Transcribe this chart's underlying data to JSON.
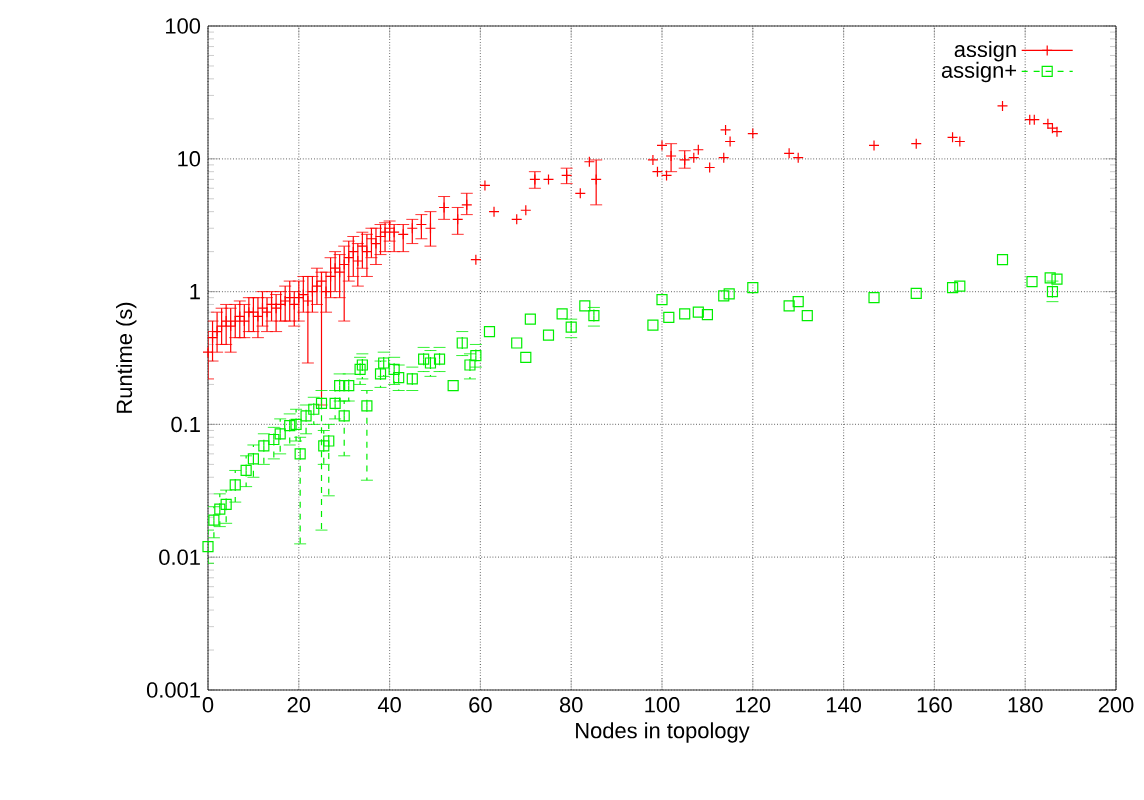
{
  "chart_data": {
    "type": "scatter",
    "xlabel": "Nodes in topology",
    "ylabel": "Runtime (s)",
    "log": "y",
    "grid": true,
    "legend": "top right",
    "xlim": [
      0,
      200
    ],
    "xticks": [
      0,
      20,
      40,
      60,
      80,
      100,
      120,
      140,
      160,
      180,
      200
    ],
    "ylim": [
      0.001,
      100
    ],
    "yticks": [
      0.001,
      0.01,
      0.1,
      1,
      10,
      100
    ],
    "series": [
      {
        "name": "assign",
        "color": "#ff0000",
        "marker": "cross",
        "line_style": "solid",
        "x": [
          0,
          1,
          2,
          3,
          4,
          5,
          6,
          7,
          8,
          9,
          10,
          11,
          12,
          13,
          14,
          15,
          16,
          17,
          18,
          19,
          20,
          21,
          22,
          23,
          24,
          25,
          26,
          27,
          28,
          29,
          30,
          31,
          32,
          33,
          34,
          35,
          36,
          37,
          38,
          39,
          40,
          41,
          43,
          45,
          47,
          49,
          52,
          55,
          57,
          59,
          61,
          63,
          68,
          70,
          72,
          75,
          79,
          82,
          84,
          85.5,
          98,
          99,
          100,
          101,
          102,
          105,
          107,
          108,
          110.5,
          113.6,
          114,
          115,
          120,
          128,
          130,
          146.7,
          156,
          164,
          165.6,
          175,
          181,
          182,
          185,
          186,
          187
        ],
        "values": [
          0.35,
          0.45,
          0.5,
          0.55,
          0.6,
          0.55,
          0.6,
          0.65,
          0.6,
          0.7,
          0.7,
          0.65,
          0.75,
          0.7,
          0.8,
          0.75,
          0.8,
          0.85,
          0.9,
          0.8,
          0.9,
          0.95,
          0.85,
          1.0,
          1.1,
          1.2,
          1.0,
          1.3,
          1.5,
          1.4,
          1.6,
          1.8,
          2.0,
          1.7,
          2.2,
          2.0,
          2.5,
          2.3,
          2.6,
          2.8,
          3.0,
          2.8,
          2.7,
          3.0,
          3.2,
          3.0,
          4.3,
          3.5,
          4.5,
          1.74,
          6.3,
          4.0,
          3.5,
          4.1,
          7.0,
          7.0,
          7.5,
          5.5,
          9.5,
          7.0,
          9.8,
          8.0,
          12.6,
          7.5,
          10.5,
          9.8,
          10.2,
          11.7,
          8.6,
          10.2,
          16.5,
          13.5,
          15.5,
          11.0,
          10.2,
          12.6,
          13.0,
          14.5,
          13.5,
          25.0,
          19.7,
          19.7,
          18.4,
          17.0,
          16.0
        ],
        "errors": [
          [
            0.22,
            0.5
          ],
          [
            0.3,
            0.6
          ],
          [
            0.35,
            0.7
          ],
          [
            0.4,
            0.75
          ],
          [
            0.4,
            0.8
          ],
          [
            0.35,
            0.75
          ],
          [
            0.45,
            0.8
          ],
          [
            0.45,
            0.85
          ],
          [
            0.45,
            0.8
          ],
          [
            0.5,
            0.9
          ],
          [
            0.5,
            0.9
          ],
          [
            0.45,
            0.9
          ],
          [
            0.55,
            1.0
          ],
          [
            0.5,
            0.9
          ],
          [
            0.6,
            1.0
          ],
          [
            0.5,
            0.95
          ],
          [
            0.6,
            1.0
          ],
          [
            0.6,
            1.1
          ],
          [
            0.6,
            1.2
          ],
          [
            0.55,
            1.0
          ],
          [
            0.6,
            1.2
          ],
          [
            0.7,
            1.3
          ],
          [
            0.29,
            1.3
          ],
          [
            0.7,
            1.3
          ],
          [
            0.8,
            1.5
          ],
          [
            0.14,
            1.4
          ],
          [
            0.7,
            1.4
          ],
          [
            0.9,
            1.8
          ],
          [
            1.0,
            2.0
          ],
          [
            0.9,
            1.9
          ],
          [
            0.6,
            2.2
          ],
          [
            1.2,
            2.4
          ],
          [
            1.3,
            2.6
          ],
          [
            1.1,
            2.3
          ],
          [
            1.5,
            2.8
          ],
          [
            1.3,
            2.7
          ],
          [
            1.8,
            3.0
          ],
          [
            1.6,
            3.0
          ],
          [
            1.9,
            3.2
          ],
          [
            2.0,
            3.3
          ],
          [
            2.4,
            3.4
          ],
          [
            2.0,
            3.2
          ],
          [
            2.0,
            3.2
          ],
          [
            2.3,
            3.5
          ],
          [
            2.5,
            3.8
          ],
          [
            2.2,
            4.0
          ],
          [
            3.5,
            5.2
          ],
          [
            2.7,
            4.3
          ],
          [
            3.8,
            5.5
          ],
          null,
          null,
          null,
          null,
          null,
          [
            6.0,
            8.0
          ],
          null,
          [
            6.5,
            8.5
          ],
          null,
          null,
          [
            4.5,
            9.8
          ],
          null,
          null,
          null,
          null,
          [
            8.0,
            13.0
          ],
          [
            8.5,
            11.5
          ],
          null,
          null,
          null,
          null,
          null,
          null,
          null,
          null,
          null,
          null,
          null,
          null,
          null,
          null,
          null,
          null,
          null,
          null,
          null
        ]
      },
      {
        "name": "assign+",
        "color": "#00ee00",
        "marker": "square",
        "line_style": "dashed",
        "x": [
          0,
          1.3,
          2.6,
          4,
          6,
          8.4,
          10,
          12.3,
          14.5,
          15.9,
          18,
          19.4,
          20.3,
          21.6,
          23.3,
          25,
          25.5,
          26.6,
          28,
          29,
          30,
          31,
          33.5,
          34,
          35,
          38,
          38.7,
          41,
          42,
          45,
          47.5,
          49,
          51,
          54,
          56,
          57.7,
          59,
          62,
          68,
          70,
          71,
          75,
          78,
          80,
          83,
          85,
          98,
          100,
          101.5,
          105,
          108,
          110,
          113.6,
          114.8,
          120,
          128,
          130,
          132,
          146.7,
          156,
          164,
          165.6,
          175,
          181.5,
          185.5,
          186,
          187
        ],
        "values": [
          0.012,
          0.019,
          0.023,
          0.025,
          0.035,
          0.045,
          0.055,
          0.069,
          0.077,
          0.085,
          0.098,
          0.1,
          0.06,
          0.116,
          0.13,
          0.144,
          0.069,
          0.075,
          0.144,
          0.196,
          0.116,
          0.196,
          0.26,
          0.28,
          0.138,
          0.24,
          0.29,
          0.26,
          0.225,
          0.22,
          0.31,
          0.29,
          0.31,
          0.196,
          0.41,
          0.28,
          0.33,
          0.5,
          0.41,
          0.32,
          0.62,
          0.47,
          0.68,
          0.54,
          0.78,
          0.66,
          0.56,
          0.87,
          0.64,
          0.68,
          0.7,
          0.67,
          0.93,
          0.96,
          1.07,
          0.78,
          0.84,
          0.66,
          0.9,
          0.97,
          1.07,
          1.1,
          1.74,
          1.19,
          1.27,
          1.0,
          1.24
        ],
        "errors": [
          [
            0.009,
            0.016
          ],
          [
            0.014,
            0.024
          ],
          [
            0.017,
            0.03
          ],
          [
            0.018,
            0.032
          ],
          [
            0.026,
            0.045
          ],
          [
            0.034,
            0.058
          ],
          [
            0.04,
            0.07
          ],
          [
            0.05,
            0.085
          ],
          [
            0.055,
            0.095
          ],
          [
            0.06,
            0.11
          ],
          [
            0.07,
            0.12
          ],
          [
            0.075,
            0.13
          ],
          [
            0.0126,
            0.08
          ],
          [
            0.085,
            0.14
          ],
          [
            0.1,
            0.16
          ],
          [
            0.016,
            0.18
          ],
          [
            0.05,
            0.09
          ],
          [
            0.029,
            0.1
          ],
          [
            0.11,
            0.18
          ],
          [
            0.15,
            0.24
          ],
          [
            0.058,
            0.15
          ],
          [
            0.15,
            0.24
          ],
          [
            0.2,
            0.32
          ],
          [
            0.22,
            0.34
          ],
          [
            0.038,
            0.18
          ],
          [
            0.19,
            0.3
          ],
          [
            0.23,
            0.35
          ],
          [
            0.2,
            0.32
          ],
          [
            0.18,
            0.28
          ],
          [
            0.18,
            0.27
          ],
          [
            0.25,
            0.38
          ],
          [
            0.23,
            0.36
          ],
          [
            0.25,
            0.38
          ],
          null,
          [
            0.33,
            0.5
          ],
          [
            0.22,
            0.34
          ],
          [
            0.27,
            0.4
          ],
          null,
          null,
          null,
          null,
          null,
          null,
          [
            0.45,
            0.62
          ],
          null,
          [
            0.55,
            0.76
          ],
          null,
          null,
          null,
          null,
          null,
          null,
          null,
          null,
          null,
          null,
          null,
          null,
          null,
          null,
          null,
          null,
          null,
          null,
          null,
          [
            0.84,
            1.2
          ],
          null
        ]
      }
    ]
  }
}
